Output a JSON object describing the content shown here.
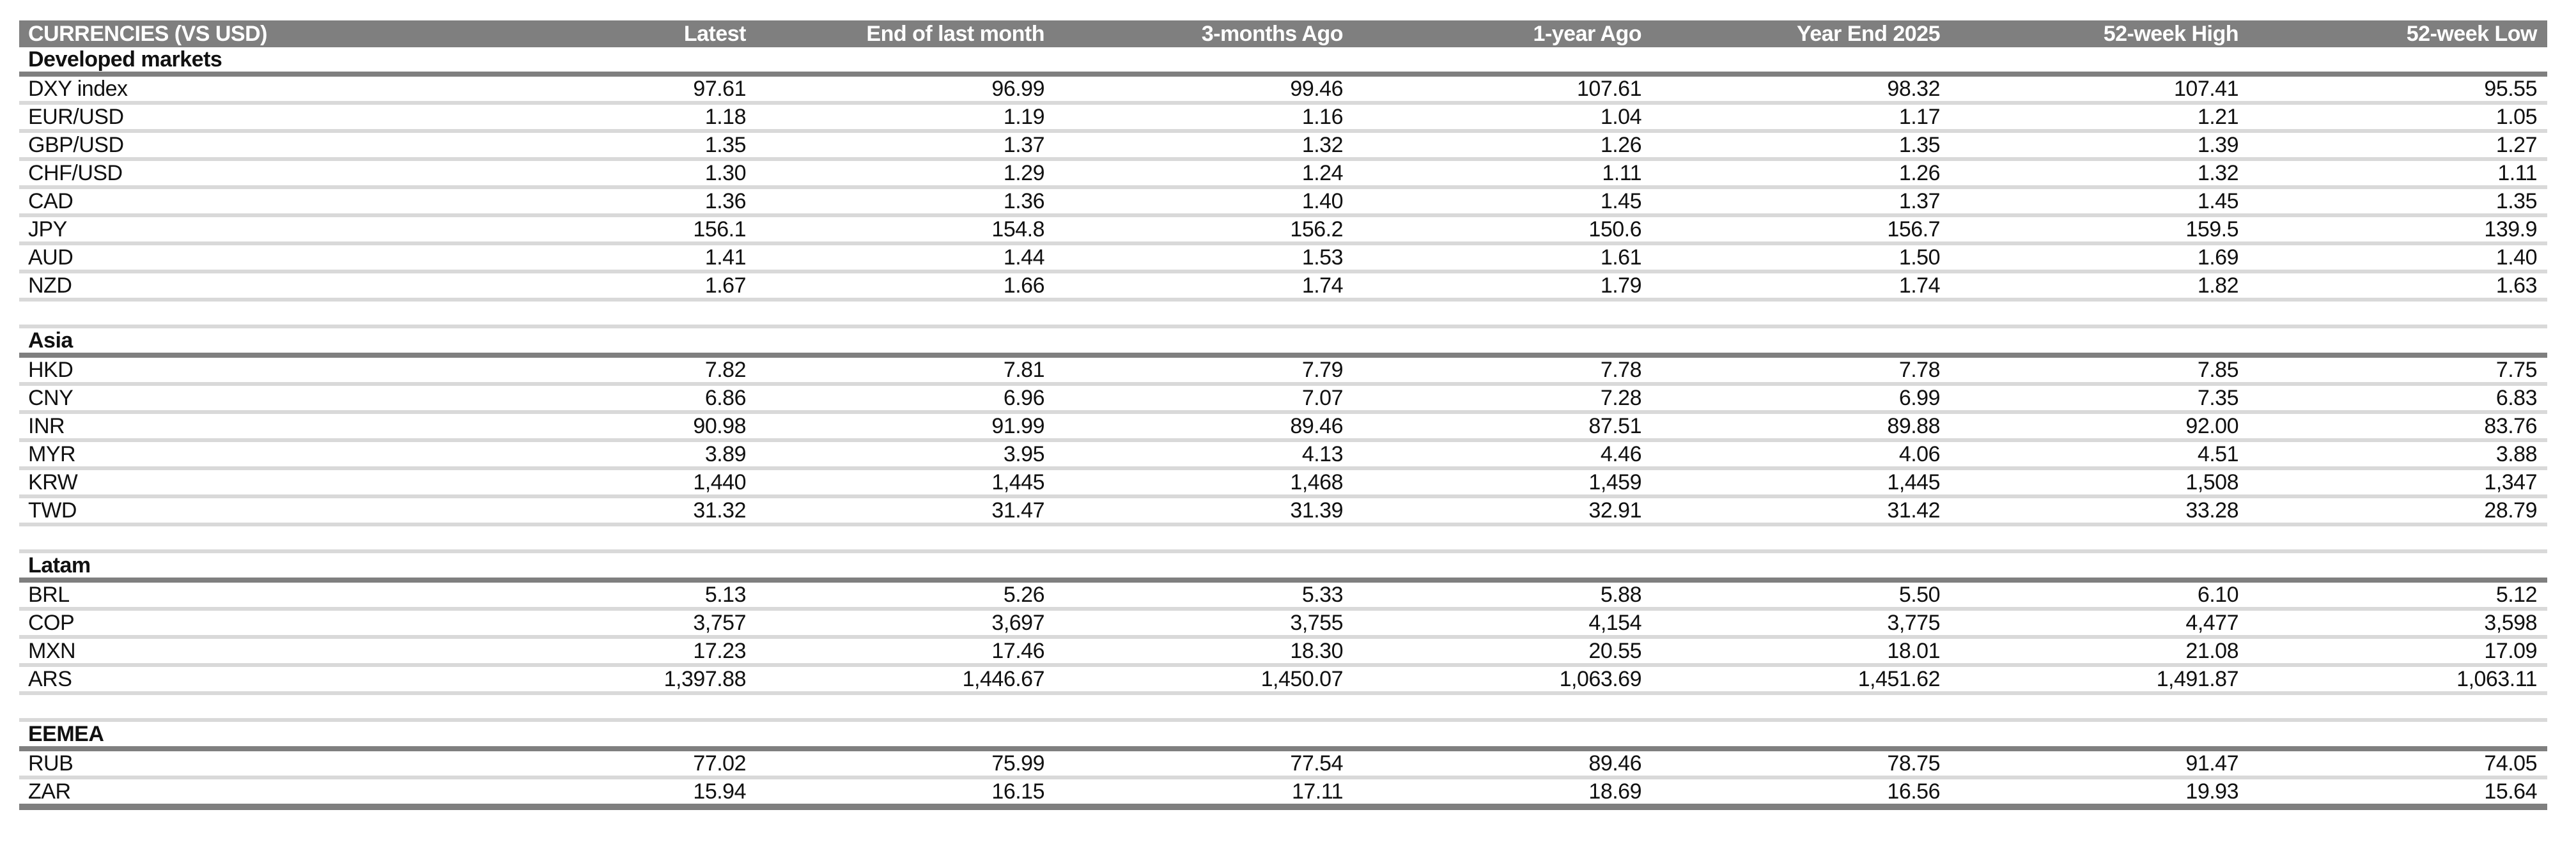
{
  "table": {
    "title": "CURRENCIES (VS USD)",
    "columns": [
      "Latest",
      "End of last month",
      "3-months Ago",
      "1-year Ago",
      "Year End 2025",
      "52-week High",
      "52-week Low"
    ],
    "sections": [
      {
        "name": "Developed markets",
        "rows": [
          {
            "label": "DXY index",
            "values": [
              "97.61",
              "96.99",
              "99.46",
              "107.61",
              "98.32",
              "107.41",
              "95.55"
            ]
          },
          {
            "label": "EUR/USD",
            "values": [
              "1.18",
              "1.19",
              "1.16",
              "1.04",
              "1.17",
              "1.21",
              "1.05"
            ]
          },
          {
            "label": "GBP/USD",
            "values": [
              "1.35",
              "1.37",
              "1.32",
              "1.26",
              "1.35",
              "1.39",
              "1.27"
            ]
          },
          {
            "label": "CHF/USD",
            "values": [
              "1.30",
              "1.29",
              "1.24",
              "1.11",
              "1.26",
              "1.32",
              "1.11"
            ]
          },
          {
            "label": "CAD",
            "values": [
              "1.36",
              "1.36",
              "1.40",
              "1.45",
              "1.37",
              "1.45",
              "1.35"
            ]
          },
          {
            "label": "JPY",
            "values": [
              "156.1",
              "154.8",
              "156.2",
              "150.6",
              "156.7",
              "159.5",
              "139.9"
            ]
          },
          {
            "label": "AUD",
            "values": [
              "1.41",
              "1.44",
              "1.53",
              "1.61",
              "1.50",
              "1.69",
              "1.40"
            ]
          },
          {
            "label": "NZD",
            "values": [
              "1.67",
              "1.66",
              "1.74",
              "1.79",
              "1.74",
              "1.82",
              "1.63"
            ]
          }
        ]
      },
      {
        "name": "Asia",
        "rows": [
          {
            "label": "HKD",
            "values": [
              "7.82",
              "7.81",
              "7.79",
              "7.78",
              "7.78",
              "7.85",
              "7.75"
            ]
          },
          {
            "label": "CNY",
            "values": [
              "6.86",
              "6.96",
              "7.07",
              "7.28",
              "6.99",
              "7.35",
              "6.83"
            ]
          },
          {
            "label": "INR",
            "values": [
              "90.98",
              "91.99",
              "89.46",
              "87.51",
              "89.88",
              "92.00",
              "83.76"
            ]
          },
          {
            "label": "MYR",
            "values": [
              "3.89",
              "3.95",
              "4.13",
              "4.46",
              "4.06",
              "4.51",
              "3.88"
            ]
          },
          {
            "label": "KRW",
            "values": [
              "1,440",
              "1,445",
              "1,468",
              "1,459",
              "1,445",
              "1,508",
              "1,347"
            ]
          },
          {
            "label": "TWD",
            "values": [
              "31.32",
              "31.47",
              "31.39",
              "32.91",
              "31.42",
              "33.28",
              "28.79"
            ]
          }
        ]
      },
      {
        "name": "Latam",
        "rows": [
          {
            "label": "BRL",
            "values": [
              "5.13",
              "5.26",
              "5.33",
              "5.88",
              "5.50",
              "6.10",
              "5.12"
            ]
          },
          {
            "label": "COP",
            "values": [
              "3,757",
              "3,697",
              "3,755",
              "4,154",
              "3,775",
              "4,477",
              "3,598"
            ]
          },
          {
            "label": "MXN",
            "values": [
              "17.23",
              "17.46",
              "18.30",
              "20.55",
              "18.01",
              "21.08",
              "17.09"
            ]
          },
          {
            "label": "ARS",
            "values": [
              "1,397.88",
              "1,446.67",
              "1,450.07",
              "1,063.69",
              "1,451.62",
              "1,491.87",
              "1,063.11"
            ]
          }
        ]
      },
      {
        "name": "EEMEA",
        "rows": [
          {
            "label": "RUB",
            "values": [
              "77.02",
              "75.99",
              "77.54",
              "89.46",
              "78.75",
              "91.47",
              "74.05"
            ]
          },
          {
            "label": "ZAR",
            "values": [
              "15.94",
              "16.15",
              "17.11",
              "18.69",
              "16.56",
              "19.93",
              "15.64"
            ]
          }
        ]
      }
    ]
  },
  "colors": {
    "header_bg": "#7f7f7f",
    "section_rule": "#7f7f7f",
    "row_rule": "#d9d9d9",
    "text": "#111111",
    "header_text": "#ffffff"
  }
}
